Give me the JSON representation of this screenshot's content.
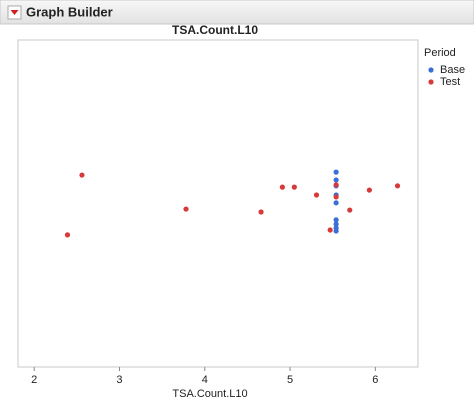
{
  "header": {
    "title": "Graph Builder"
  },
  "chart_data": {
    "type": "scatter",
    "title": "TSA.Count.L10",
    "x_label": "TSA.Count.L10",
    "legend_title": "Period",
    "legend": "right",
    "xlim": [
      1.81,
      6.5
    ],
    "xticks": [
      2,
      3,
      4,
      5,
      6
    ],
    "ylim": [
      0,
      1
    ],
    "series": [
      {
        "name": "Base",
        "color": "#3a6fd8",
        "x": [
          5.54,
          5.54,
          5.54,
          5.54,
          5.54,
          5.54,
          5.54,
          5.54,
          5.54
        ],
        "y": [
          0.596,
          0.572,
          0.554,
          0.526,
          0.502,
          0.45,
          0.437,
          0.425,
          0.416
        ]
      },
      {
        "name": "Test",
        "color": "#d63a3a",
        "x": [
          2.39,
          2.56,
          3.78,
          4.66,
          4.91,
          5.05,
          5.31,
          5.47,
          5.54,
          5.54,
          5.7,
          5.93,
          6.26
        ],
        "y": [
          0.404,
          0.587,
          0.483,
          0.474,
          0.55,
          0.55,
          0.526,
          0.419,
          0.557,
          0.52,
          0.48,
          0.541,
          0.554
        ]
      }
    ]
  }
}
